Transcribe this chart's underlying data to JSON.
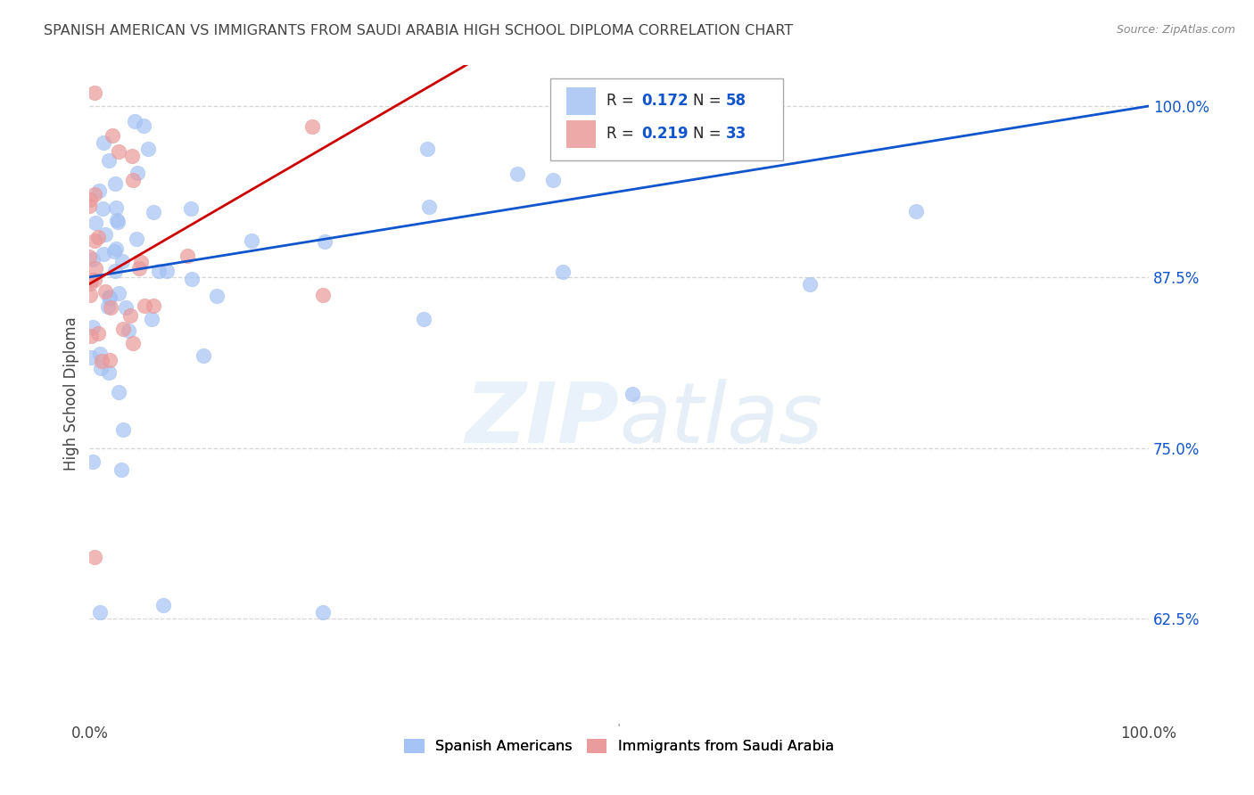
{
  "title": "SPANISH AMERICAN VS IMMIGRANTS FROM SAUDI ARABIA HIGH SCHOOL DIPLOMA CORRELATION CHART",
  "source": "Source: ZipAtlas.com",
  "ylabel": "High School Diploma",
  "xlabel": "",
  "watermark": "ZIPatlas",
  "xlim": [
    0.0,
    1.0
  ],
  "ylim": [
    0.55,
    1.03
  ],
  "yticks": [
    0.625,
    0.75,
    0.875,
    1.0
  ],
  "ytick_labels": [
    "62.5%",
    "75.0%",
    "87.5%",
    "100.0%"
  ],
  "xticks": [
    0.0,
    0.1,
    0.2,
    0.3,
    0.4,
    0.5,
    0.6,
    0.7,
    0.8,
    0.9,
    1.0
  ],
  "xtick_labels": [
    "0.0%",
    "",
    "",
    "",
    "",
    "",
    "",
    "",
    "",
    "",
    "100.0%"
  ],
  "blue_R": 0.172,
  "blue_N": 58,
  "pink_R": 0.219,
  "pink_N": 33,
  "blue_color": "#a4c2f4",
  "pink_color": "#ea9999",
  "blue_line_color": "#1155cc",
  "pink_line_color": "#cc0000",
  "legend_text_color": "#1155cc",
  "background_color": "#ffffff",
  "grid_color": "#cccccc",
  "title_color": "#434343",
  "axis_label_color": "#434343",
  "tick_color_right": "#1155cc"
}
